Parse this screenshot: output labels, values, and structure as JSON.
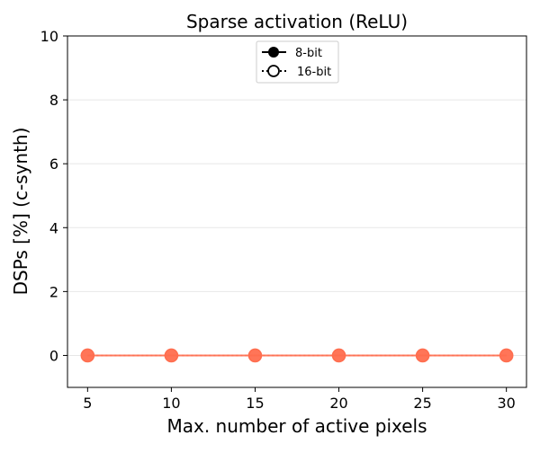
{
  "chart_data": {
    "type": "line",
    "title": "Sparse activation (ReLU)",
    "xlabel": "Max. number of active pixels",
    "ylabel": "DSPs [%] (c-synth)",
    "xlim": [
      3.8,
      31.2
    ],
    "ylim": [
      -1,
      10
    ],
    "xticks": [
      5,
      10,
      15,
      20,
      25,
      30
    ],
    "yticks": [
      0,
      2,
      4,
      6,
      8,
      10
    ],
    "grid": "horizontal",
    "legend_position": "top-center",
    "legend": [
      {
        "label": "8-bit",
        "style": "solid",
        "marker": "filled-circle"
      },
      {
        "label": "16-bit",
        "style": "dotted",
        "marker": "open-circle"
      }
    ],
    "x": [
      5,
      10,
      15,
      20,
      25,
      30
    ],
    "series": [
      {
        "values": [
          0,
          0,
          0,
          0,
          0,
          0
        ],
        "color": "#ff6e4f",
        "line_color": "#ff6e4f",
        "marker": "filled-circle",
        "style": "solid"
      },
      {
        "values": [
          0,
          0,
          0,
          0,
          0,
          0
        ],
        "color": "#ff6e4f",
        "line_color": "#ff6e4f",
        "marker": "open-circle",
        "style": "dotted"
      }
    ]
  }
}
